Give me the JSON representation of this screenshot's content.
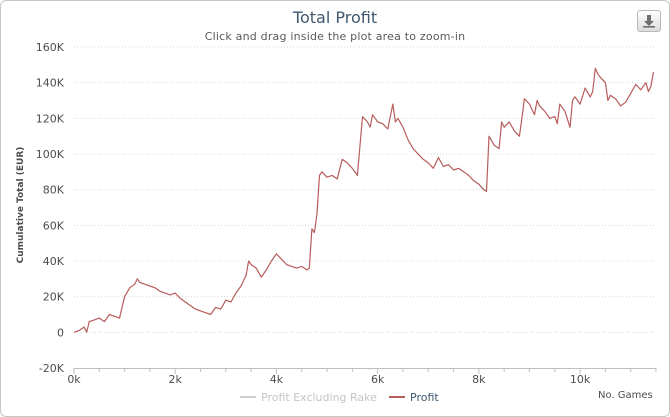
{
  "title": "Total Profit",
  "subtitle": "Click and drag inside the plot area to zoom-in",
  "export_icon": "download-icon",
  "xaxis_label": "No. Games",
  "legend": [
    {
      "name": "Profit Excluding Rake",
      "color": "#cfcfcf",
      "state": "hidden"
    },
    {
      "name": "Profit",
      "color": "#b85c5c",
      "state": "visible"
    }
  ],
  "chart_data": {
    "type": "line",
    "title": "Total Profit",
    "subtitle": "Click and drag inside the plot area to zoom-in",
    "xlabel": "No. Games",
    "ylabel": "Cumulative Total (EUR)",
    "xlim": [
      0,
      11500
    ],
    "ylim": [
      -20000,
      160000
    ],
    "x_ticks": [
      0,
      2000,
      4000,
      6000,
      8000,
      10000
    ],
    "x_tick_labels": [
      "0k",
      "2k",
      "4k",
      "6k",
      "8k",
      "10k"
    ],
    "y_ticks": [
      -20000,
      0,
      20000,
      40000,
      60000,
      80000,
      100000,
      120000,
      140000,
      160000
    ],
    "y_tick_labels": [
      "-20K",
      "0",
      "20K",
      "40K",
      "60K",
      "80K",
      "100K",
      "120K",
      "140K",
      "160K"
    ],
    "grid": true,
    "legend_position": "bottom",
    "series": [
      {
        "name": "Profit",
        "color": "#b85c5c",
        "x": [
          0,
          100,
          200,
          250,
          300,
          400,
          500,
          600,
          700,
          800,
          900,
          1000,
          1100,
          1200,
          1250,
          1300,
          1400,
          1500,
          1600,
          1700,
          1800,
          1900,
          2000,
          2100,
          2200,
          2300,
          2400,
          2500,
          2600,
          2700,
          2800,
          2900,
          3000,
          3100,
          3200,
          3300,
          3400,
          3450,
          3500,
          3600,
          3700,
          3800,
          3900,
          4000,
          4100,
          4200,
          4300,
          4400,
          4500,
          4600,
          4650,
          4700,
          4750,
          4800,
          4850,
          4900,
          5000,
          5100,
          5200,
          5300,
          5400,
          5500,
          5600,
          5700,
          5800,
          5850,
          5900,
          6000,
          6100,
          6200,
          6300,
          6350,
          6400,
          6500,
          6600,
          6700,
          6800,
          6900,
          7000,
          7100,
          7200,
          7300,
          7400,
          7500,
          7600,
          7700,
          7800,
          7900,
          8000,
          8100,
          8150,
          8200,
          8300,
          8400,
          8450,
          8500,
          8600,
          8700,
          8800,
          8850,
          8900,
          9000,
          9100,
          9150,
          9200,
          9300,
          9400,
          9500,
          9550,
          9600,
          9700,
          9800,
          9850,
          9900,
          10000,
          10100,
          10200,
          10250,
          10300,
          10350,
          10400,
          10500,
          10550,
          10600,
          10700,
          10800,
          10900,
          11000,
          11100,
          11200,
          11300,
          11350,
          11400,
          11450
        ],
        "y": [
          0,
          1000,
          3000,
          0,
          6000,
          7000,
          8000,
          6000,
          10000,
          9000,
          8000,
          20000,
          25000,
          27000,
          30000,
          28000,
          27000,
          26000,
          25000,
          23000,
          22000,
          21000,
          22000,
          19000,
          17000,
          15000,
          13000,
          12000,
          11000,
          10000,
          14000,
          13000,
          18000,
          17000,
          22000,
          26000,
          32000,
          40000,
          38000,
          36000,
          31000,
          35000,
          40000,
          44000,
          41000,
          38000,
          37000,
          36000,
          37000,
          35000,
          36000,
          58000,
          56000,
          66000,
          88000,
          90000,
          87000,
          88000,
          86000,
          97000,
          95000,
          92000,
          88000,
          121000,
          118000,
          115000,
          122000,
          118000,
          117000,
          114000,
          128000,
          118000,
          120000,
          115000,
          108000,
          103000,
          100000,
          97000,
          95000,
          92000,
          98000,
          93000,
          94000,
          91000,
          92000,
          90000,
          88000,
          85000,
          83000,
          80000,
          79000,
          110000,
          105000,
          103000,
          118000,
          115000,
          118000,
          113000,
          110000,
          120000,
          131000,
          128000,
          122000,
          130000,
          127000,
          124000,
          120000,
          121000,
          117000,
          128000,
          124000,
          115000,
          130000,
          132000,
          128000,
          137000,
          132000,
          135000,
          148000,
          145000,
          143000,
          140000,
          130000,
          133000,
          131000,
          127000,
          129000,
          134000,
          139000,
          136000,
          140000,
          135000,
          138000,
          146000
        ]
      },
      {
        "name": "Profit Excluding Rake",
        "color": "#cfcfcf",
        "visible": false
      }
    ]
  }
}
